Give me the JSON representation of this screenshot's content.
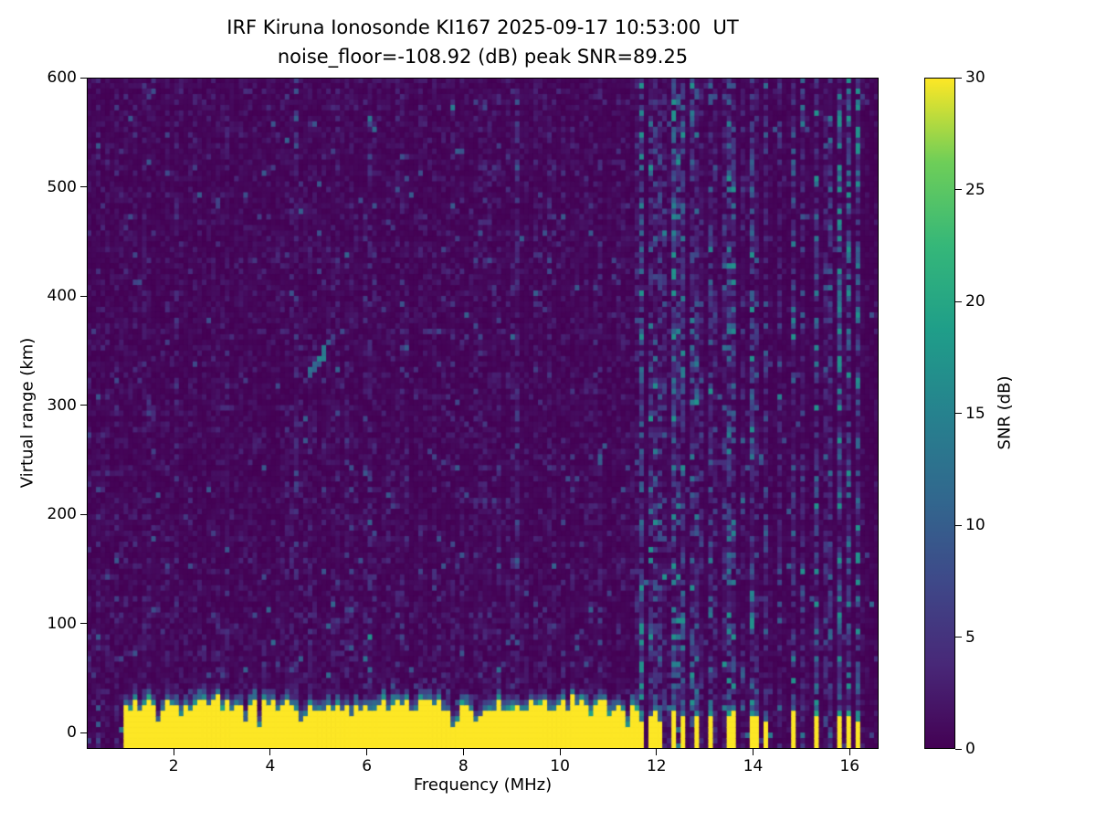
{
  "chart_data": {
    "type": "heatmap",
    "title": "IRF Kiruna Ionosonde KI167 2025-09-17 10:53:00  UT",
    "subtitle": "noise_floor=-108.92 (dB) peak SNR=89.25",
    "xlabel": "Frequency (MHz)",
    "ylabel": "Virtual range (km)",
    "x_ticks": [
      2,
      4,
      6,
      8,
      10,
      12,
      14,
      16
    ],
    "y_ticks": [
      0,
      100,
      200,
      300,
      400,
      500,
      600
    ],
    "xlim": [
      0.2,
      16.6
    ],
    "ylim": [
      -15,
      600
    ],
    "noise_floor_db": -108.92,
    "peak_snr_db": 89.25,
    "colorbar": {
      "label": "SNR (dB)",
      "ticks": [
        0,
        5,
        10,
        15,
        20,
        25,
        30
      ],
      "range": [
        0,
        30
      ],
      "colormap": "viridis"
    },
    "colormap_stops": [
      "#440154",
      "#482878",
      "#3e4989",
      "#31688e",
      "#26828e",
      "#1f9e89",
      "#35b779",
      "#6ece58",
      "#fde725"
    ],
    "features": {
      "ground_clutter": {
        "f_start_mhz": 0.95,
        "f_end_mhz": 11.65,
        "top_km_mean": 26,
        "snr_db": 30
      },
      "echo_trace": {
        "f_start_mhz": 4.78,
        "f_end_mhz": 5.2,
        "range_start_km": 327,
        "range_end_km": 351,
        "snr_db": 15
      },
      "rfi_lines_mhz": [
        11.72,
        11.84,
        11.96,
        12.08,
        12.2,
        12.32,
        12.45,
        12.58,
        12.7,
        12.82,
        12.95,
        13.08,
        13.2,
        13.38,
        13.55,
        13.75,
        13.95,
        14.1,
        14.3,
        14.55,
        14.8,
        15.05,
        15.3,
        15.55,
        15.8,
        16.0,
        16.2
      ],
      "rfi_strong_mhz": [
        11.72,
        11.84,
        11.96,
        12.08,
        12.32,
        12.58,
        12.82,
        13.08,
        13.55,
        13.95,
        14.1,
        14.3,
        14.8,
        15.3,
        15.8,
        16.0,
        16.2
      ]
    },
    "grid": {
      "cols": 172,
      "rows": 123,
      "seed": 11
    }
  }
}
